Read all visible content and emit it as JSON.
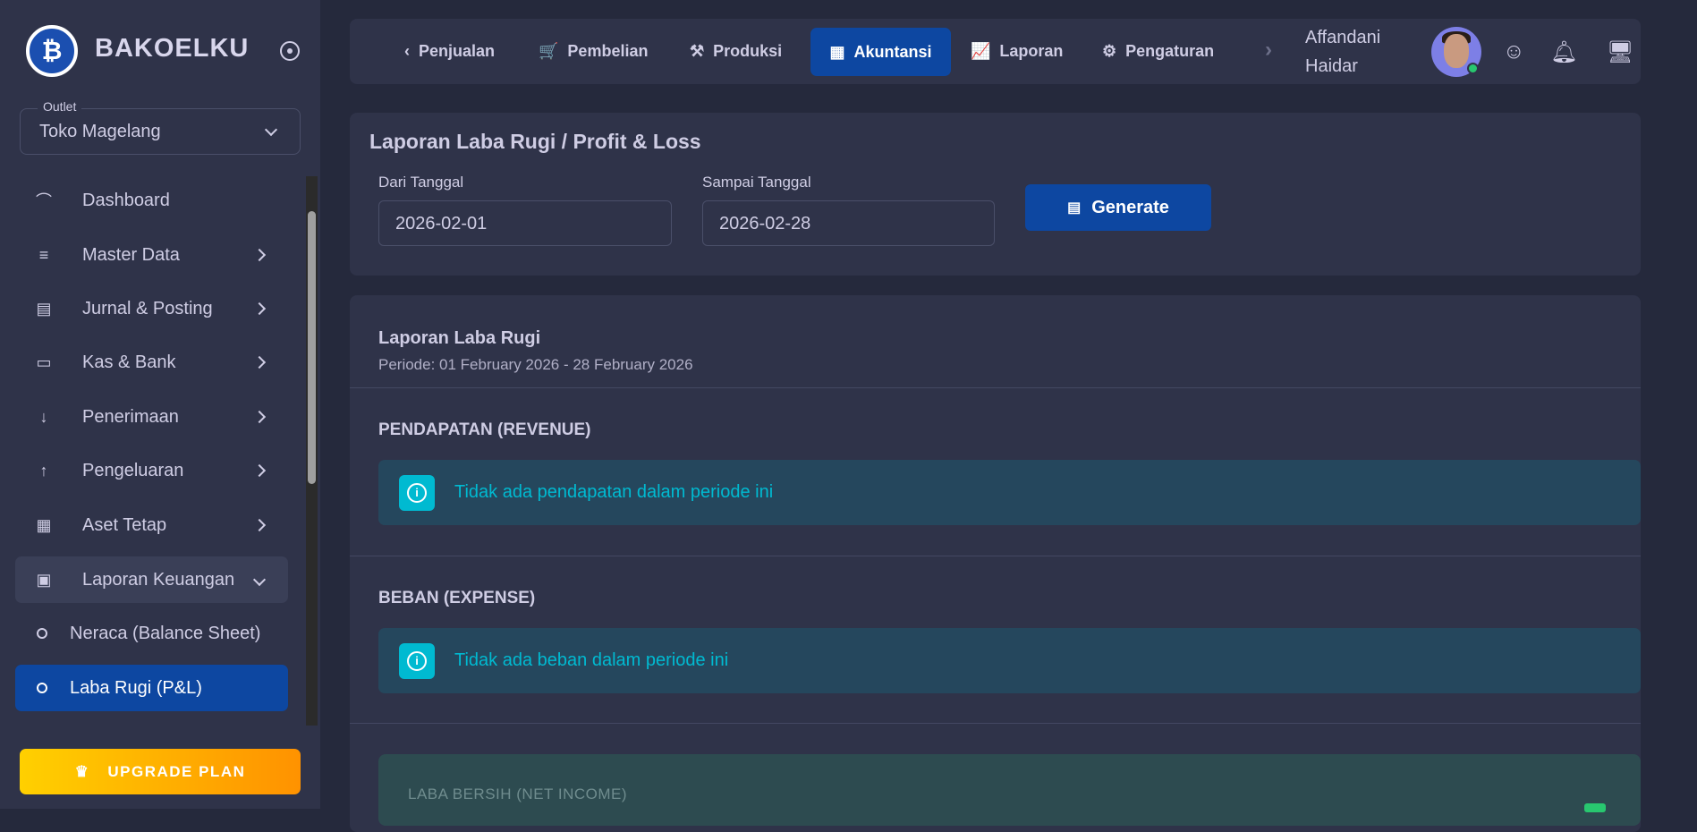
{
  "brand": {
    "name": "BAKOELKU",
    "logo_glyph": "₿"
  },
  "outlet": {
    "label": "Outlet",
    "value": "Toko Magelang"
  },
  "sidebar": {
    "items": [
      {
        "label": "Dashboard",
        "icon": "chart-line-icon",
        "glyph": "⌒"
      },
      {
        "label": "Master Data",
        "icon": "database-icon",
        "glyph": "≡"
      },
      {
        "label": "Jurnal & Posting",
        "icon": "file-text-icon",
        "glyph": "▤"
      },
      {
        "label": "Kas & Bank",
        "icon": "wallet-icon",
        "glyph": "▭"
      },
      {
        "label": "Penerimaan",
        "icon": "arrow-down-icon",
        "glyph": "↓"
      },
      {
        "label": "Pengeluaran",
        "icon": "arrow-up-icon",
        "glyph": "↑"
      },
      {
        "label": "Aset Tetap",
        "icon": "building-icon",
        "glyph": "▦"
      },
      {
        "label": "Laporan Keuangan",
        "icon": "clipboard-icon",
        "glyph": "▣"
      }
    ],
    "sub": [
      {
        "label": "Neraca (Balance Sheet)"
      },
      {
        "label": "Laba Rugi (P&L)"
      }
    ],
    "upgrade": "UPGRADE PLAN"
  },
  "topnav": {
    "items": [
      {
        "label": "Penjualan",
        "glyph": "‹"
      },
      {
        "label": "Pembelian",
        "glyph": "🛒"
      },
      {
        "label": "Produksi",
        "glyph": "⚒"
      },
      {
        "label": "Akuntansi",
        "glyph": "▦"
      },
      {
        "label": "Laporan",
        "glyph": "📈"
      },
      {
        "label": "Pengaturan",
        "glyph": "⚙"
      }
    ],
    "user_first": "Affandani",
    "user_last": "Haidar"
  },
  "filter": {
    "title": "Laporan Laba Rugi / Profit & Loss",
    "from_label": "Dari Tanggal",
    "from_value": "2026-02-01",
    "to_label": "Sampai Tanggal",
    "to_value": "2026-02-28",
    "generate": "Generate"
  },
  "report": {
    "title": "Laporan Laba Rugi",
    "period": "Periode: 01 February 2026 - 28 February 2026",
    "revenue_title": "PENDAPATAN (REVENUE)",
    "revenue_empty": "Tidak ada pendapatan dalam periode ini",
    "expense_title": "BEBAN (EXPENSE)",
    "expense_empty": "Tidak ada beban dalam periode ini",
    "net_title": "LABA BERSIH (NET INCOME)"
  },
  "colors": {
    "accent": "#0d47a1",
    "info": "#00bad1",
    "success": "#28c76f"
  }
}
